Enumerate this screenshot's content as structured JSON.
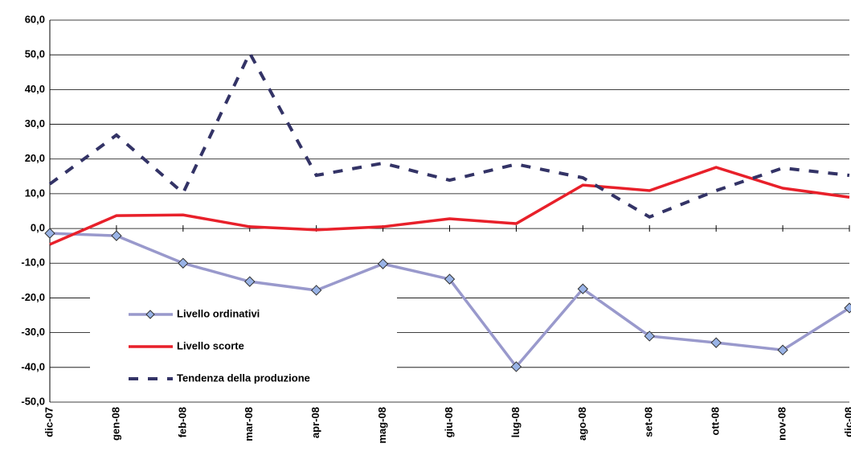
{
  "chart_data": {
    "type": "line",
    "categories": [
      "dic-07",
      "gen-08",
      "feb-08",
      "mar-08",
      "apr-08",
      "mag-08",
      "giu-08",
      "lug-08",
      "ago-08",
      "set-08",
      "ott-08",
      "nov-08",
      "dic-08"
    ],
    "series": [
      {
        "name": "Livello ordinativi",
        "color": "#9999cc",
        "marker": "diamond",
        "marker_color": "#99b3e6",
        "style": "solid",
        "values": [
          -1.4,
          -2.1,
          -10.0,
          -15.3,
          -17.8,
          -10.2,
          -14.6,
          -39.8,
          -17.4,
          -31.0,
          -32.9,
          -35.0,
          -22.9
        ]
      },
      {
        "name": "Livello scorte",
        "color": "#e8202a",
        "style": "solid",
        "values": [
          -4.6,
          3.7,
          3.9,
          0.5,
          -0.4,
          0.5,
          2.8,
          1.4,
          12.5,
          10.9,
          17.6,
          11.6,
          9.0
        ]
      },
      {
        "name": "Tendenza della produzione",
        "color": "#333366",
        "style": "dashed",
        "values": [
          12.8,
          26.9,
          10.2,
          50.5,
          15.3,
          18.8,
          13.9,
          18.5,
          14.6,
          3.3,
          10.9,
          17.4,
          15.3
        ]
      }
    ],
    "ylim": [
      -50,
      60
    ],
    "yticks": [
      {
        "value": -50,
        "label": "-50,0"
      },
      {
        "value": -40,
        "label": "-40,0"
      },
      {
        "value": -30,
        "label": "-30,0"
      },
      {
        "value": -20,
        "label": "-20,0"
      },
      {
        "value": -10,
        "label": "-10,0"
      },
      {
        "value": 0,
        "label": "0,0"
      },
      {
        "value": 10,
        "label": "10,0"
      },
      {
        "value": 20,
        "label": "20,0"
      },
      {
        "value": 30,
        "label": "30,0"
      },
      {
        "value": 40,
        "label": "40,0"
      },
      {
        "value": 50,
        "label": "50,0"
      },
      {
        "value": 60,
        "label": "60,0"
      }
    ],
    "grid": true,
    "legend": "lower left"
  }
}
